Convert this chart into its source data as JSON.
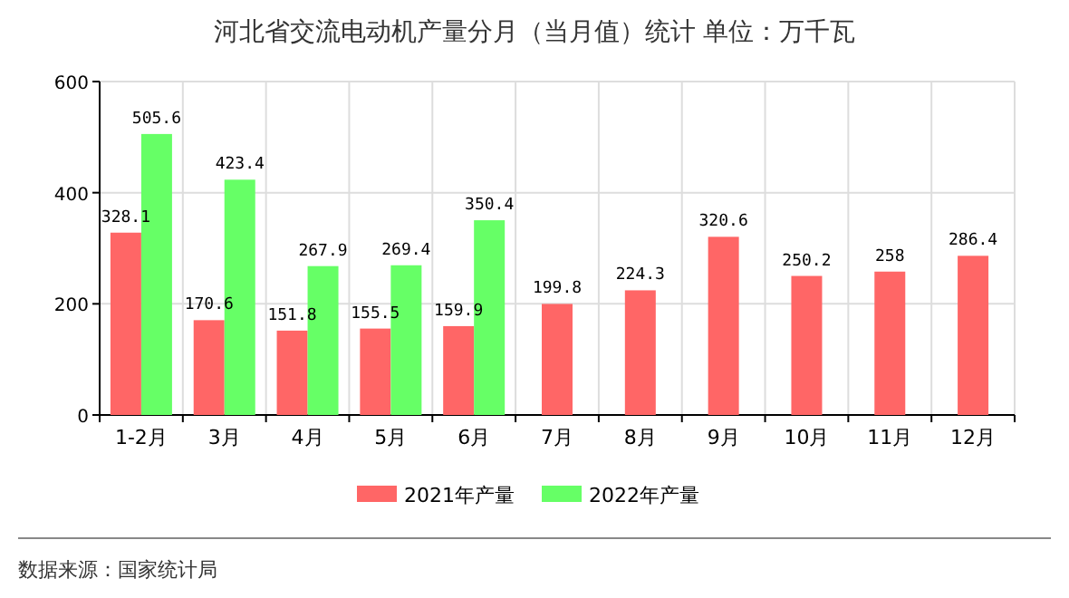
{
  "chart_data": {
    "type": "bar",
    "title": "河北省交流电动机产量分月（当月值）统计  单位：万千瓦",
    "categories": [
      "1-2月",
      "3月",
      "4月",
      "5月",
      "6月",
      "7月",
      "8月",
      "9月",
      "10月",
      "11月",
      "12月"
    ],
    "series": [
      {
        "name": "2021年产量",
        "color": "#ff6666",
        "values": [
          328.1,
          170.6,
          151.8,
          155.5,
          159.9,
          199.8,
          224.3,
          320.6,
          250.2,
          258,
          286.4
        ]
      },
      {
        "name": "2022年产量",
        "color": "#66ff66",
        "values": [
          505.6,
          423.4,
          267.9,
          269.4,
          350.4,
          null,
          null,
          null,
          null,
          null,
          null
        ]
      }
    ],
    "ylim": [
      0,
      600
    ],
    "yticks": [
      0,
      200,
      400,
      600
    ],
    "grid": true,
    "legend": "bottom",
    "data_labels": true,
    "annotations": [
      "数据来源：国家统计局"
    ]
  }
}
